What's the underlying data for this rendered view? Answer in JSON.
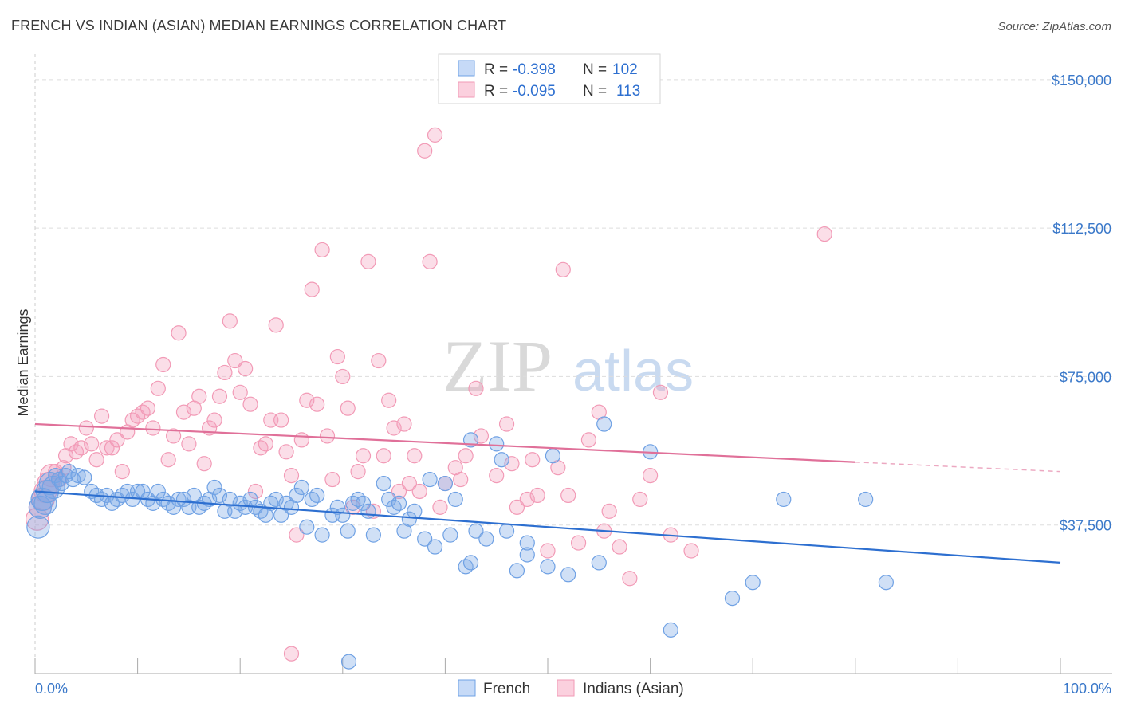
{
  "title": "FRENCH VS INDIAN (ASIAN) MEDIAN EARNINGS CORRELATION CHART",
  "source": "Source: ZipAtlas.com",
  "watermark": {
    "zip": "ZIP",
    "atlas": "atlas"
  },
  "legend_top": {
    "r_label": "R =",
    "n_label": "N =",
    "rows": [
      {
        "r": "-0.398",
        "n": "102",
        "color": "#6fa1e4"
      },
      {
        "r": "-0.095",
        "n": "113",
        "color": "#f29ab6"
      }
    ]
  },
  "legend_bottom": [
    {
      "label": "French",
      "color": "#6fa1e4"
    },
    {
      "label": "Indians (Asian)",
      "color": "#f29ab6"
    }
  ],
  "chart_data": {
    "type": "scatter",
    "title": "FRENCH VS INDIAN (ASIAN) MEDIAN EARNINGS CORRELATION CHART",
    "xlabel": "",
    "ylabel": "Median Earnings",
    "xlim": [
      0,
      100
    ],
    "ylim": [
      0,
      155000
    ],
    "x_tick_labels": [
      "0.0%",
      "100.0%"
    ],
    "y_ticks": [
      {
        "value": 37500,
        "label": "$37,500"
      },
      {
        "value": 75000,
        "label": "$75,000"
      },
      {
        "value": 112500,
        "label": "$112,500"
      },
      {
        "value": 150000,
        "label": "$150,000"
      }
    ],
    "series": [
      {
        "name": "French",
        "color": "#6fa1e4",
        "line_color": "#2d6fd0",
        "trend": {
          "x": [
            0,
            100
          ],
          "y": [
            46000,
            28000
          ],
          "solid_until": 100
        },
        "points": [
          [
            0.3,
            37000
          ],
          [
            0.5,
            42000
          ],
          [
            0.7,
            44000
          ],
          [
            1,
            43000
          ],
          [
            1.2,
            46000
          ],
          [
            1.5,
            48000
          ],
          [
            1.8,
            47000
          ],
          [
            2,
            50000
          ],
          [
            2.3,
            49000
          ],
          [
            2.6,
            48000
          ],
          [
            3,
            50000
          ],
          [
            3.3,
            51000
          ],
          [
            3.7,
            49000
          ],
          [
            4.2,
            50000
          ],
          [
            4.8,
            49500
          ],
          [
            5.5,
            46000
          ],
          [
            6,
            45000
          ],
          [
            6.5,
            44000
          ],
          [
            7,
            45000
          ],
          [
            7.5,
            43000
          ],
          [
            8,
            44000
          ],
          [
            8.5,
            45000
          ],
          [
            9,
            46000
          ],
          [
            9.5,
            44000
          ],
          [
            10,
            46000
          ],
          [
            10.5,
            46000
          ],
          [
            11,
            44000
          ],
          [
            11.5,
            43000
          ],
          [
            12,
            46000
          ],
          [
            12.5,
            44000
          ],
          [
            13,
            43000
          ],
          [
            13.5,
            42000
          ],
          [
            14,
            44000
          ],
          [
            14.5,
            44000
          ],
          [
            15,
            42000
          ],
          [
            15.5,
            45000
          ],
          [
            16,
            42000
          ],
          [
            16.5,
            43000
          ],
          [
            17,
            44000
          ],
          [
            17.5,
            47000
          ],
          [
            18,
            45000
          ],
          [
            18.5,
            41000
          ],
          [
            19,
            44000
          ],
          [
            19.5,
            41000
          ],
          [
            20,
            43000
          ],
          [
            20.5,
            42000
          ],
          [
            21,
            44000
          ],
          [
            21.5,
            42000
          ],
          [
            22,
            41000
          ],
          [
            22.5,
            40000
          ],
          [
            23,
            43000
          ],
          [
            23.5,
            44000
          ],
          [
            24,
            40000
          ],
          [
            24.5,
            43000
          ],
          [
            25,
            42000
          ],
          [
            25.5,
            45000
          ],
          [
            26,
            47000
          ],
          [
            26.5,
            37000
          ],
          [
            27,
            44000
          ],
          [
            27.5,
            45000
          ],
          [
            28,
            35000
          ],
          [
            29,
            40000
          ],
          [
            29.5,
            42000
          ],
          [
            30,
            40000
          ],
          [
            30.5,
            36000
          ],
          [
            31,
            43000
          ],
          [
            31.5,
            44000
          ],
          [
            32,
            43000
          ],
          [
            32.5,
            41000
          ],
          [
            33,
            35000
          ],
          [
            34,
            48000
          ],
          [
            34.5,
            44000
          ],
          [
            35,
            42000
          ],
          [
            35.5,
            43000
          ],
          [
            36,
            36000
          ],
          [
            36.5,
            39000
          ],
          [
            37,
            41000
          ],
          [
            38,
            34000
          ],
          [
            38.5,
            49000
          ],
          [
            39,
            32000
          ],
          [
            40,
            48000
          ],
          [
            40.5,
            35000
          ],
          [
            41,
            44000
          ],
          [
            42,
            27000
          ],
          [
            42.5,
            28000
          ],
          [
            42.5,
            59000
          ],
          [
            43,
            36000
          ],
          [
            44,
            34000
          ],
          [
            45,
            58000
          ],
          [
            45.5,
            54000
          ],
          [
            46,
            36000
          ],
          [
            47,
            26000
          ],
          [
            48,
            30000
          ],
          [
            48,
            33000
          ],
          [
            50,
            27000
          ],
          [
            50.5,
            55000
          ],
          [
            52,
            25000
          ],
          [
            55,
            28000
          ],
          [
            55.5,
            63000
          ],
          [
            60,
            56000
          ],
          [
            62,
            11000
          ],
          [
            68,
            19000
          ],
          [
            70,
            23000
          ],
          [
            73,
            44000
          ],
          [
            81,
            44000
          ],
          [
            83,
            23000
          ],
          [
            30.6,
            3000
          ]
        ]
      },
      {
        "name": "Indians (Asian)",
        "color": "#f29ab6",
        "line_color": "#e07099",
        "trend": {
          "x": [
            0,
            100
          ],
          "y": [
            63000,
            51000
          ],
          "solid_until": 80
        },
        "points": [
          [
            0.2,
            39000
          ],
          [
            0.5,
            42000
          ],
          [
            0.8,
            44000
          ],
          [
            1,
            46000
          ],
          [
            1.3,
            48000
          ],
          [
            1.6,
            50000
          ],
          [
            2,
            51000
          ],
          [
            2.4,
            49000
          ],
          [
            2.8,
            52000
          ],
          [
            3,
            55000
          ],
          [
            3.5,
            58000
          ],
          [
            4,
            56000
          ],
          [
            4.5,
            57000
          ],
          [
            5,
            62000
          ],
          [
            5.5,
            58000
          ],
          [
            6,
            54000
          ],
          [
            6.5,
            65000
          ],
          [
            7,
            57000
          ],
          [
            7.5,
            57000
          ],
          [
            8,
            59000
          ],
          [
            8.5,
            51000
          ],
          [
            9,
            61000
          ],
          [
            9.5,
            64000
          ],
          [
            10,
            65000
          ],
          [
            10.5,
            66000
          ],
          [
            11,
            67000
          ],
          [
            11.5,
            62000
          ],
          [
            12,
            72000
          ],
          [
            12.5,
            78000
          ],
          [
            13,
            54000
          ],
          [
            13.5,
            60000
          ],
          [
            14,
            86000
          ],
          [
            14.5,
            66000
          ],
          [
            15,
            58000
          ],
          [
            15.5,
            67000
          ],
          [
            16,
            70000
          ],
          [
            16.5,
            53000
          ],
          [
            17,
            62000
          ],
          [
            17.5,
            64000
          ],
          [
            18,
            70000
          ],
          [
            18.5,
            76000
          ],
          [
            19,
            89000
          ],
          [
            19.5,
            79000
          ],
          [
            20,
            71000
          ],
          [
            20.5,
            77000
          ],
          [
            21,
            68000
          ],
          [
            21.5,
            46000
          ],
          [
            22,
            57000
          ],
          [
            22.5,
            58000
          ],
          [
            23,
            64000
          ],
          [
            23.5,
            88000
          ],
          [
            24,
            64000
          ],
          [
            24.5,
            56000
          ],
          [
            25,
            50000
          ],
          [
            25.5,
            35000
          ],
          [
            26,
            59000
          ],
          [
            26.5,
            69000
          ],
          [
            27,
            97000
          ],
          [
            27.5,
            68000
          ],
          [
            28,
            107000
          ],
          [
            28.5,
            60000
          ],
          [
            29,
            49000
          ],
          [
            29.5,
            80000
          ],
          [
            30,
            75000
          ],
          [
            30.5,
            67000
          ],
          [
            31,
            42000
          ],
          [
            31.5,
            51000
          ],
          [
            32,
            55000
          ],
          [
            32.5,
            104000
          ],
          [
            33,
            41000
          ],
          [
            33.5,
            79000
          ],
          [
            34,
            55000
          ],
          [
            34.5,
            69000
          ],
          [
            35,
            62000
          ],
          [
            35.5,
            46000
          ],
          [
            36,
            63000
          ],
          [
            36.5,
            48000
          ],
          [
            37,
            55000
          ],
          [
            37.5,
            46000
          ],
          [
            38,
            132000
          ],
          [
            38.5,
            104000
          ],
          [
            39,
            136000
          ],
          [
            39.5,
            42000
          ],
          [
            40,
            48000
          ],
          [
            41,
            52000
          ],
          [
            41.5,
            49000
          ],
          [
            42,
            55000
          ],
          [
            43,
            72000
          ],
          [
            43.5,
            60000
          ],
          [
            45,
            50000
          ],
          [
            46,
            63000
          ],
          [
            46.5,
            53000
          ],
          [
            47,
            42000
          ],
          [
            48,
            44000
          ],
          [
            48.5,
            54000
          ],
          [
            49,
            45000
          ],
          [
            50,
            31000
          ],
          [
            51,
            52000
          ],
          [
            51.5,
            102000
          ],
          [
            52,
            45000
          ],
          [
            53,
            33000
          ],
          [
            54,
            59000
          ],
          [
            55,
            66000
          ],
          [
            55.5,
            36000
          ],
          [
            56,
            41000
          ],
          [
            57,
            32000
          ],
          [
            58,
            24000
          ],
          [
            59,
            44000
          ],
          [
            60,
            50000
          ],
          [
            61,
            71000
          ],
          [
            62,
            35000
          ],
          [
            64,
            31000
          ],
          [
            77,
            111000
          ],
          [
            25,
            5000
          ]
        ]
      }
    ]
  }
}
